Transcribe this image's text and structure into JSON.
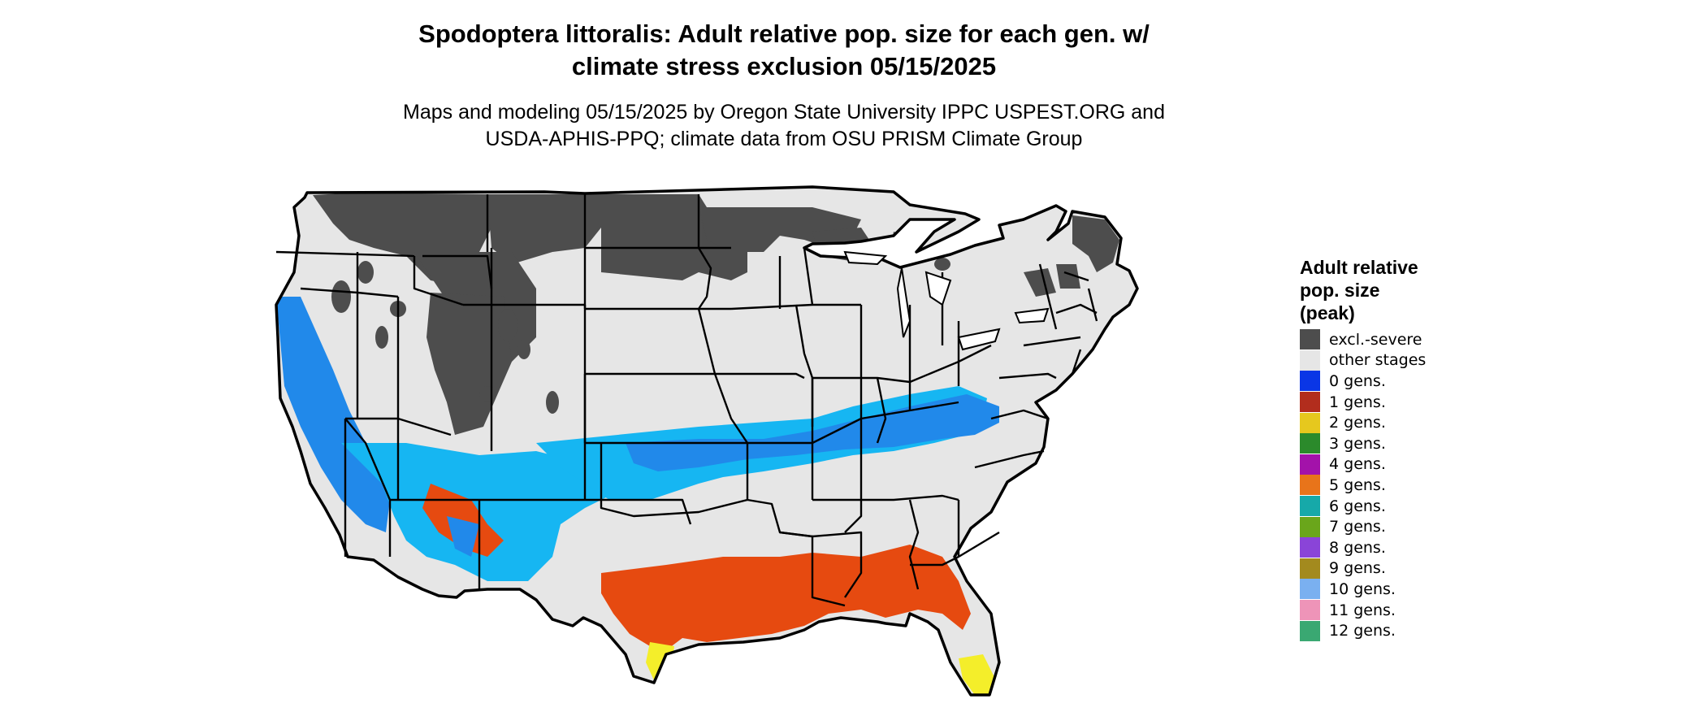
{
  "title": {
    "line1": "Spodoptera littoralis: Adult relative pop. size for each gen. w/",
    "line2": "climate stress exclusion 05/15/2025"
  },
  "subtitle": {
    "line1": "Maps and modeling 05/15/2025 by Oregon State University IPPC USPEST.ORG and",
    "line2": "USDA-APHIS-PPQ; climate data from OSU PRISM Climate Group"
  },
  "legend": {
    "title_lines": [
      "Adult relative",
      "pop. size",
      "(peak)"
    ],
    "items": [
      {
        "label": "excl.-severe",
        "color": "#4d4d4d"
      },
      {
        "label": "other stages",
        "color": "#e6e6e6"
      },
      {
        "label": "0 gens.",
        "color": "#0a36e6"
      },
      {
        "label": "1 gens.",
        "color": "#b22d1d"
      },
      {
        "label": "2 gens.",
        "color": "#e6c81e"
      },
      {
        "label": "3 gens.",
        "color": "#2b8a2b"
      },
      {
        "label": "4 gens.",
        "color": "#a312aa"
      },
      {
        "label": "5 gens.",
        "color": "#e8741a"
      },
      {
        "label": "6 gens.",
        "color": "#16a9a9"
      },
      {
        "label": "7 gens.",
        "color": "#6aa61b"
      },
      {
        "label": "8 gens.",
        "color": "#8a44d8"
      },
      {
        "label": "9 gens.",
        "color": "#a38a1e"
      },
      {
        "label": "10 gens.",
        "color": "#7ab0f0"
      },
      {
        "label": "11 gens.",
        "color": "#ee94b8"
      },
      {
        "label": "12 gens.",
        "color": "#3aa872"
      }
    ]
  },
  "map_colors": {
    "land": "#e6e6e6",
    "excluded": "#4d4d4d",
    "light_blue": "#16b6f2",
    "mid_blue": "#2189ea",
    "orange_red": "#e64a10",
    "yellow": "#f4ee2a",
    "border": "#000000"
  }
}
